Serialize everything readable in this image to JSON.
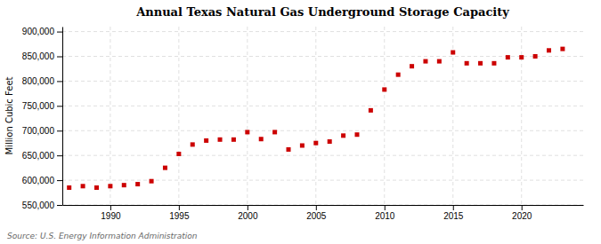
{
  "chart_data": {
    "type": "scatter",
    "title": "Annual Texas Natural Gas Underground Storage Capacity",
    "y_label": "Million Cubic Feet",
    "annotations": [
      "Source: U.S. Energy Information Administration"
    ],
    "x": [
      1987,
      1988,
      1989,
      1990,
      1991,
      1992,
      1993,
      1994,
      1995,
      1996,
      1997,
      1998,
      1999,
      2000,
      2001,
      2002,
      2003,
      2004,
      2005,
      2006,
      2007,
      2008,
      2009,
      2010,
      2011,
      2012,
      2013,
      2014,
      2015,
      2016,
      2017,
      2018,
      2019,
      2020,
      2021,
      2022,
      2023
    ],
    "values": [
      585000,
      588000,
      585000,
      588000,
      590000,
      592000,
      598000,
      625000,
      653000,
      672000,
      680000,
      682000,
      682000,
      697000,
      683000,
      697000,
      662000,
      670000,
      675000,
      678000,
      690000,
      692000,
      741000,
      783000,
      813000,
      830000,
      840000,
      840000,
      858000,
      836000,
      836000,
      836000,
      848000,
      848000,
      850000,
      862000,
      865000
    ],
    "color": "#cc0000",
    "marker": "square",
    "xlim": [
      1986.5,
      2024.5
    ],
    "xticks": [
      1990,
      1995,
      2000,
      2005,
      2010,
      2015,
      2020
    ],
    "ylim": [
      550000,
      910000
    ],
    "yticks": [
      {
        "value": 550000,
        "label": "550,000"
      },
      {
        "value": 600000,
        "label": "600,000"
      },
      {
        "value": 650000,
        "label": "650,000"
      },
      {
        "value": 700000,
        "label": "700,000"
      },
      {
        "value": 750000,
        "label": "750,000"
      },
      {
        "value": 800000,
        "label": "800,000"
      },
      {
        "value": 850000,
        "label": "850,000"
      },
      {
        "value": 900000,
        "label": "900,000"
      }
    ],
    "grid": true
  }
}
